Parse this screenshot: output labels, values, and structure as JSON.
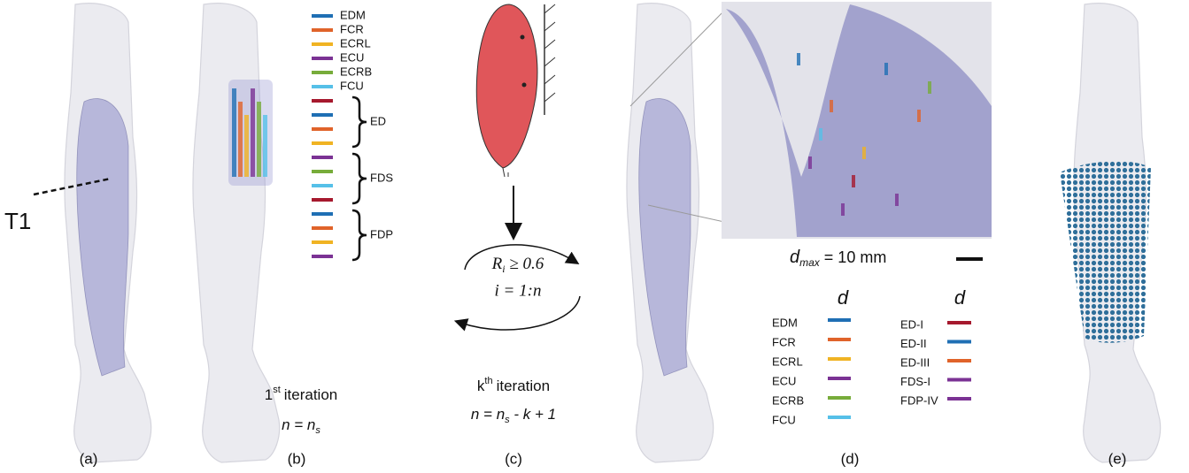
{
  "panels": {
    "a": {
      "label": "(a)",
      "section_label": "T1"
    },
    "b": {
      "label": "(b)",
      "legend": [
        {
          "name": "EDM",
          "color": "#1f6fb4"
        },
        {
          "name": "FCR",
          "color": "#e0632a"
        },
        {
          "name": "ECRL",
          "color": "#f0b323"
        },
        {
          "name": "ECU",
          "color": "#7b3294"
        },
        {
          "name": "ECRB",
          "color": "#77ac3a"
        },
        {
          "name": "FCU",
          "color": "#56c0e8"
        }
      ],
      "group_bar_colors": [
        "#a6192e",
        "#1f6fb4",
        "#e0632a",
        "#f0b323",
        "#7b3294",
        "#77ac3a",
        "#56c0e8",
        "#a6192e",
        "#1f6fb4",
        "#e0632a",
        "#f0b323",
        "#7b3294"
      ],
      "groups": [
        "ED",
        "FDS",
        "FDP"
      ],
      "iteration": {
        "number": "1",
        "suffix": "st",
        "word": "iteration"
      },
      "formula": {
        "main": "n = n",
        "subscript": "s"
      }
    },
    "c": {
      "label": "(c)",
      "condition": {
        "main": "R",
        "subscript": "i",
        "rest": " ≥ 0.6"
      },
      "range": "i = 1:n",
      "iteration": {
        "number": "k",
        "suffix": "th",
        "word": "iteration"
      },
      "formula": {
        "main": "n = n",
        "subscript": "s",
        "rest": " - k + 1"
      }
    },
    "d": {
      "label": "(d)",
      "scale": {
        "main": "d",
        "subscript": "max",
        "rest": " = 10 mm"
      },
      "column_header": "d",
      "legend_left": [
        {
          "name": "EDM",
          "color": "#1f6fb4"
        },
        {
          "name": "FCR",
          "color": "#e0632a"
        },
        {
          "name": "ECRL",
          "color": "#f0b323"
        },
        {
          "name": "ECU",
          "color": "#7b3294"
        },
        {
          "name": "ECRB",
          "color": "#77ac3a"
        },
        {
          "name": "FCU",
          "color": "#56c0e8"
        }
      ],
      "legend_right": [
        {
          "name": "ED-I",
          "color": "#a6192e"
        },
        {
          "name": "ED-II",
          "color": "#1f6fb4"
        },
        {
          "name": "ED-III",
          "color": "#e0632a"
        },
        {
          "name": "FDS-I",
          "color": "#7b3294"
        },
        {
          "name": "FDP-IV",
          "color": "#7b3294"
        }
      ]
    },
    "e": {
      "label": "(e)"
    }
  }
}
